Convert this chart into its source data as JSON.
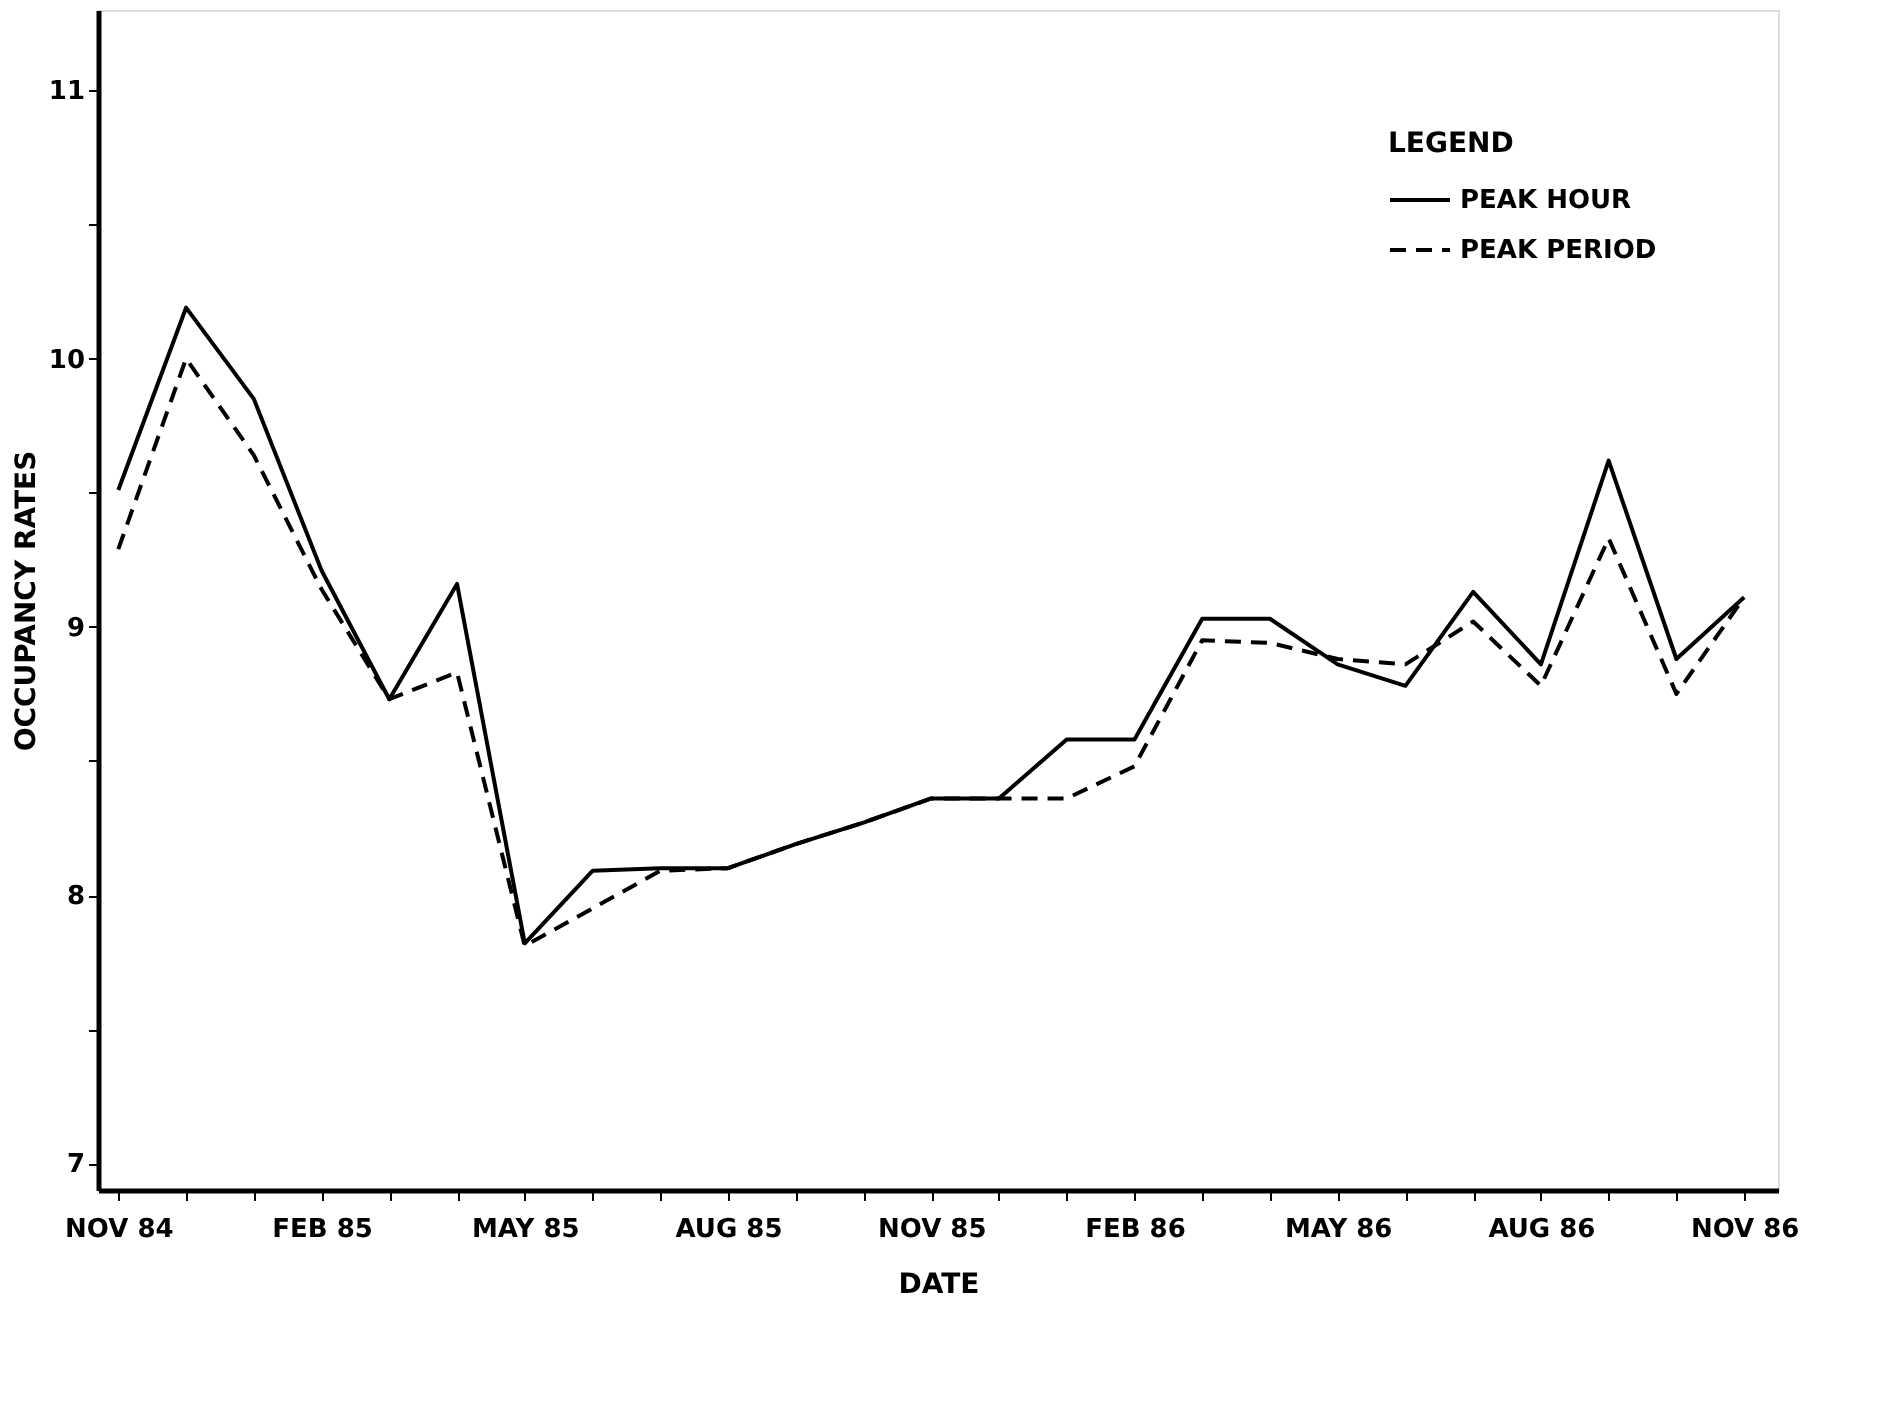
{
  "chart_data": {
    "type": "line",
    "categories": [
      "NOV 84",
      null,
      null,
      "FEB 85",
      null,
      null,
      "MAY 85",
      null,
      null,
      "AUG 85",
      null,
      null,
      "NOV 85",
      null,
      null,
      "FEB 86",
      null,
      null,
      "MAY 86",
      null,
      null,
      "AUG 86",
      null,
      null,
      "NOV 86"
    ],
    "series": [
      {
        "name": "PEAK HOUR",
        "color": "#000000",
        "line_style": "solid",
        "values": [
          9.51,
          10.19,
          9.85,
          9.21,
          8.73,
          9.16,
          7.82,
          8.09,
          8.1,
          8.1,
          8.19,
          8.27,
          8.36,
          8.36,
          8.58,
          8.58,
          9.03,
          9.03,
          8.86,
          8.78,
          9.13,
          8.86,
          9.62,
          8.88,
          9.11
        ]
      },
      {
        "name": "PEAK PERIOD",
        "color": "#000000",
        "line_style": "dashed",
        "values": [
          9.29,
          10.0,
          9.64,
          9.14,
          8.73,
          8.83,
          7.81,
          7.95,
          8.09,
          8.1,
          8.19,
          8.27,
          8.36,
          8.36,
          8.36,
          8.48,
          8.95,
          8.94,
          8.88,
          8.86,
          9.02,
          8.78,
          9.33,
          8.75,
          9.11
        ]
      }
    ],
    "xlabel": "DATE",
    "ylabel": "OCCUPANCY RATES",
    "legend_title": "LEGEND",
    "ylim": [
      6.9,
      11.3
    ],
    "yticks": [
      7,
      {
        "value": 7.5,
        "label": null
      },
      8,
      {
        "value": 8.5,
        "label": null
      },
      9,
      {
        "value": 9.5,
        "label": null
      },
      10,
      {
        "value": 10.5,
        "label": null
      },
      11
    ],
    "grid": false,
    "legend": "top right",
    "marker": "none"
  }
}
